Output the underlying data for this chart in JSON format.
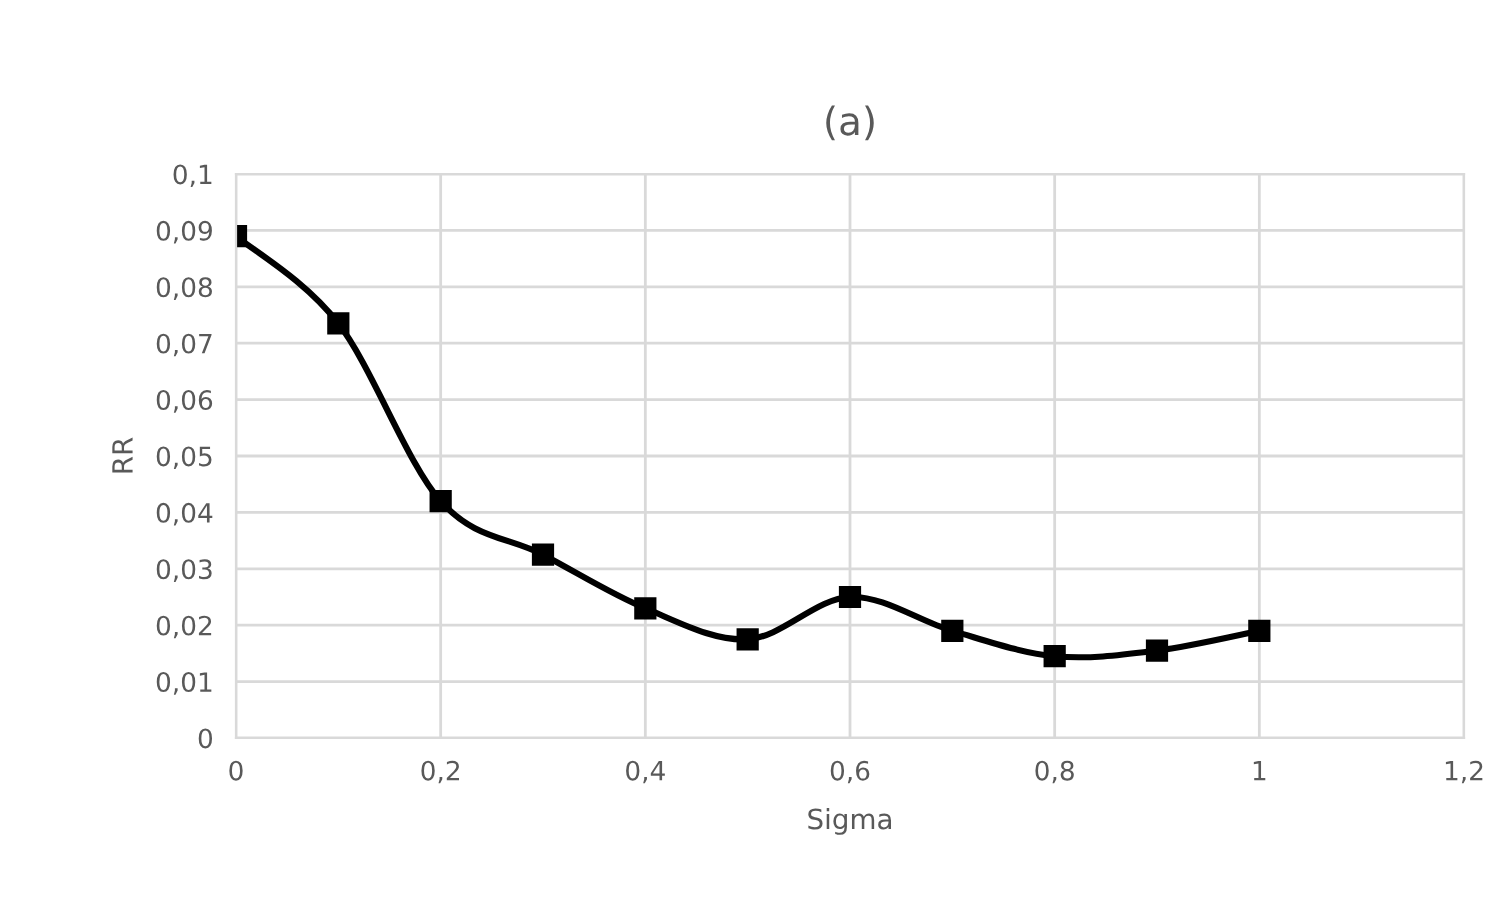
{
  "chart_data": {
    "type": "line",
    "title": "(a)",
    "xlabel": "Sigma",
    "ylabel": "RR",
    "x": [
      0,
      0.1,
      0.2,
      0.3,
      0.4,
      0.5,
      0.6,
      0.7,
      0.8,
      0.9,
      1
    ],
    "series": [
      {
        "color": "#000000",
        "values": [
          0.089,
          0.0735,
          0.042,
          0.0325,
          0.023,
          0.0175,
          0.025,
          0.019,
          0.0145,
          0.0155,
          0.019
        ]
      }
    ],
    "xlim": [
      0,
      1.2
    ],
    "xticks": [
      0,
      {
        "value": 0.2,
        "label": "0,2"
      },
      {
        "value": 0.4,
        "label": "0,4"
      },
      {
        "value": 0.6,
        "label": "0,6"
      },
      {
        "value": 0.8,
        "label": "0,8"
      },
      1,
      {
        "value": 1.2,
        "label": "1,2"
      }
    ],
    "ylim": [
      0,
      0.1
    ],
    "yticks": [
      0,
      {
        "value": 0.01,
        "label": "0,01"
      },
      {
        "value": 0.02,
        "label": "0,02"
      },
      {
        "value": 0.03,
        "label": "0,03"
      },
      {
        "value": 0.04,
        "label": "0,04"
      },
      {
        "value": 0.05,
        "label": "0,05"
      },
      {
        "value": 0.06,
        "label": "0,06"
      },
      {
        "value": 0.07,
        "label": "0,07"
      },
      {
        "value": 0.08,
        "label": "0,08"
      },
      {
        "value": 0.09,
        "label": "0,09"
      },
      {
        "value": 0.1,
        "label": "0,1"
      }
    ],
    "grid": true,
    "marker": "square",
    "line_style": "solid",
    "legend": false
  }
}
